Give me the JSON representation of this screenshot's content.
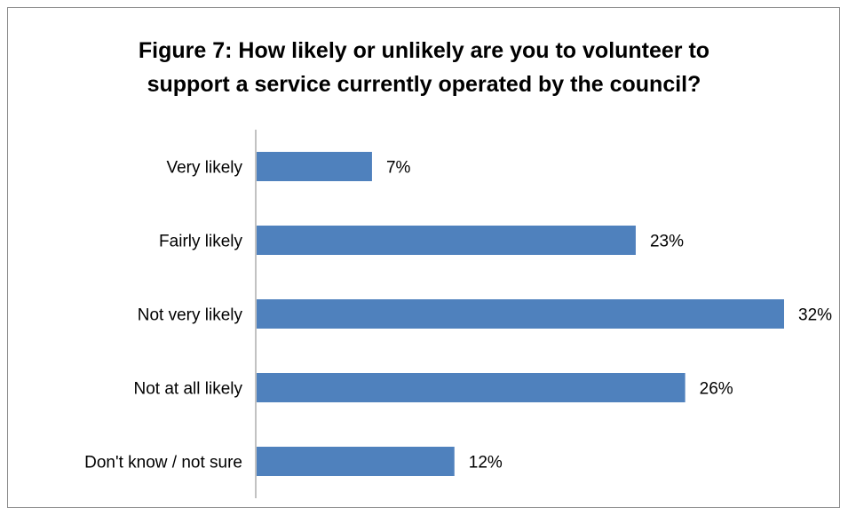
{
  "chart_data": {
    "type": "bar",
    "orientation": "horizontal",
    "title": "Figure 7:  How likely or unlikely are you to volunteer to support a service currently operated by the council?",
    "title_lines": [
      "Figure 7:  How likely or unlikely are you to volunteer to",
      "support a service currently operated by the council?"
    ],
    "categories": [
      "Very likely",
      "Fairly likely",
      "Not very likely",
      "Not at all likely",
      "Don't know / not sure"
    ],
    "values": [
      7,
      23,
      32,
      26,
      12
    ],
    "value_labels": [
      "7%",
      "23%",
      "32%",
      "26%",
      "12%"
    ],
    "xlim": [
      0,
      32
    ],
    "grid": false,
    "legend": "none",
    "bar_color": "#4F81BD"
  }
}
